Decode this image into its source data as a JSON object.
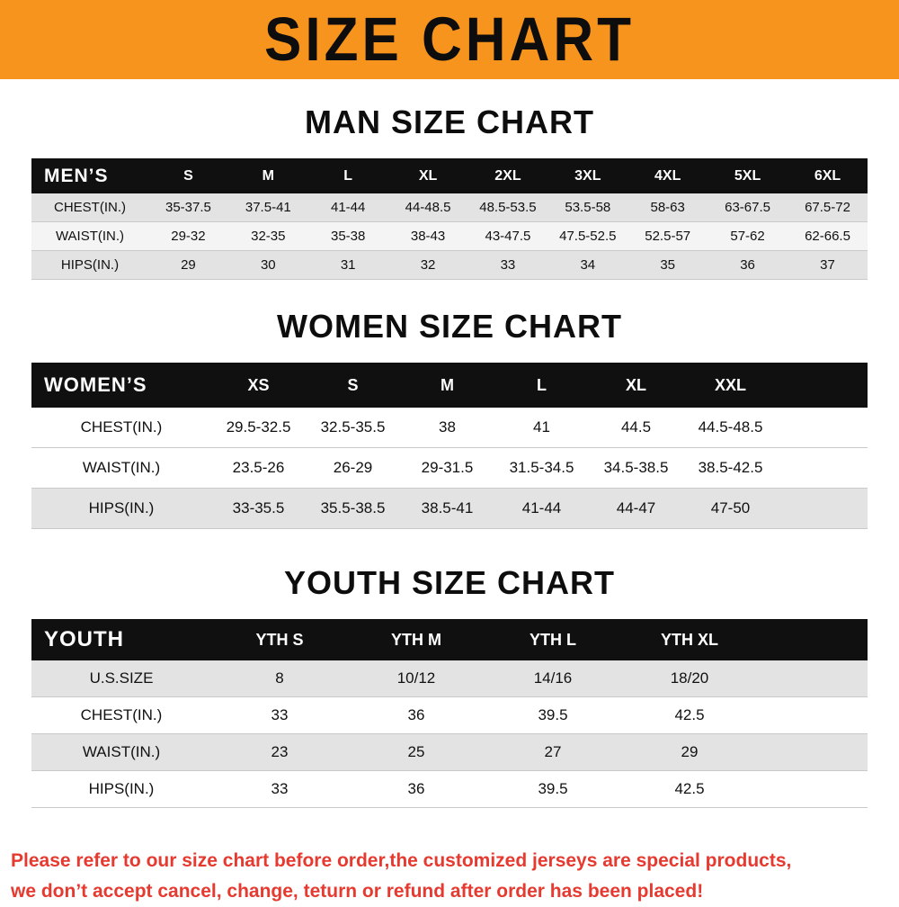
{
  "banner": {
    "title": "SIZE CHART"
  },
  "colors": {
    "banner_background": "#f7941d",
    "table_header_background": "#101010",
    "row_stripe": "#e3e3e3",
    "disclaimer_text": "#e63a30"
  },
  "sections": {
    "men": {
      "heading": "MAN SIZE CHART",
      "header": [
        "MEN’S",
        "S",
        "M",
        "L",
        "XL",
        "2XL",
        "3XL",
        "4XL",
        "5XL",
        "6XL"
      ],
      "rows": [
        [
          "CHEST(IN.)",
          "35-37.5",
          "37.5-41",
          "41-44",
          "44-48.5",
          "48.5-53.5",
          "53.5-58",
          "58-63",
          "63-67.5",
          "67.5-72"
        ],
        [
          "WAIST(IN.)",
          "29-32",
          "32-35",
          "35-38",
          "38-43",
          "43-47.5",
          "47.5-52.5",
          "52.5-57",
          "57-62",
          "62-66.5"
        ],
        [
          "HIPS(IN.)",
          "29",
          "30",
          "31",
          "32",
          "33",
          "34",
          "35",
          "36",
          "37"
        ]
      ]
    },
    "women": {
      "heading": "WOMEN SIZE CHART",
      "header": [
        "WOMEN’S",
        "XS",
        "S",
        "M",
        "L",
        "XL",
        "XXL"
      ],
      "rows": [
        [
          "CHEST(IN.)",
          "29.5-32.5",
          "32.5-35.5",
          "38",
          "41",
          "44.5",
          "44.5-48.5"
        ],
        [
          "WAIST(IN.)",
          "23.5-26",
          "26-29",
          "29-31.5",
          "31.5-34.5",
          "34.5-38.5",
          "38.5-42.5"
        ],
        [
          "HIPS(IN.)",
          "33-35.5",
          "35.5-38.5",
          "38.5-41",
          "41-44",
          "44-47",
          "47-50"
        ]
      ]
    },
    "youth": {
      "heading": "YOUTH SIZE CHART",
      "header": [
        "YOUTH",
        "YTH S",
        "YTH M",
        "YTH L",
        "YTH XL"
      ],
      "rows": [
        [
          "U.S.SIZE",
          "8",
          "10/12",
          "14/16",
          "18/20"
        ],
        [
          "CHEST(IN.)",
          "33",
          "36",
          "39.5",
          "42.5"
        ],
        [
          "WAIST(IN.)",
          "23",
          "25",
          "27",
          "29"
        ],
        [
          "HIPS(IN.)",
          "33",
          "36",
          "39.5",
          "42.5"
        ]
      ]
    }
  },
  "footer": {
    "line1": "Please refer to our size chart before order,the customized jerseys are special products,",
    "line2": "we don’t accept cancel, change, teturn or refund after order has been placed!"
  }
}
